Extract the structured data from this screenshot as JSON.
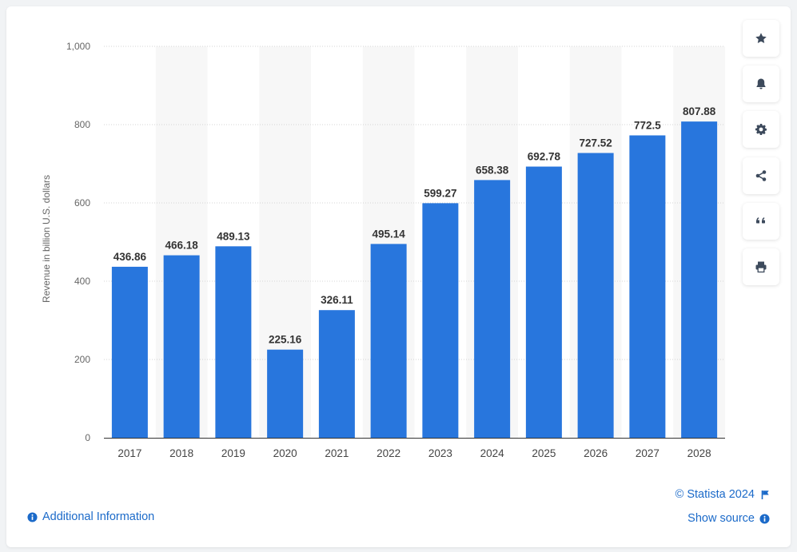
{
  "chart_data": {
    "type": "bar",
    "categories": [
      "2017",
      "2018",
      "2019",
      "2020",
      "2021",
      "2022",
      "2023",
      "2024",
      "2025",
      "2026",
      "2027",
      "2028"
    ],
    "values": [
      436.86,
      466.18,
      489.13,
      225.16,
      326.11,
      495.14,
      599.27,
      658.38,
      692.78,
      727.52,
      772.5,
      807.88
    ],
    "value_labels": [
      "436.86",
      "466.18",
      "489.13",
      "225.16",
      "326.11",
      "495.14",
      "599.27",
      "658.38",
      "692.78",
      "727.52",
      "772.5",
      "807.88"
    ],
    "ylabel": "Revenue in billion U.S. dollars",
    "xlabel": "",
    "ylim": [
      0,
      1000
    ],
    "yticks": [
      0,
      200,
      400,
      600,
      800,
      1000
    ],
    "ytick_labels": [
      "0",
      "200",
      "400",
      "600",
      "800",
      "1,000"
    ],
    "grid": true,
    "bar_color": "#2876dd"
  },
  "sidebar": {
    "buttons": [
      {
        "name": "favorite-button",
        "icon": "star-icon"
      },
      {
        "name": "notification-button",
        "icon": "bell-icon"
      },
      {
        "name": "settings-button",
        "icon": "gear-icon"
      },
      {
        "name": "share-button",
        "icon": "share-icon"
      },
      {
        "name": "cite-button",
        "icon": "quote-icon"
      },
      {
        "name": "print-button",
        "icon": "print-icon"
      }
    ]
  },
  "footer": {
    "copyright": "© Statista 2024",
    "show_source": "Show source",
    "additional_info": "Additional Information"
  },
  "colors": {
    "accent": "#1b6ac9",
    "bar": "#2876dd",
    "icon": "#3d4a5c"
  }
}
